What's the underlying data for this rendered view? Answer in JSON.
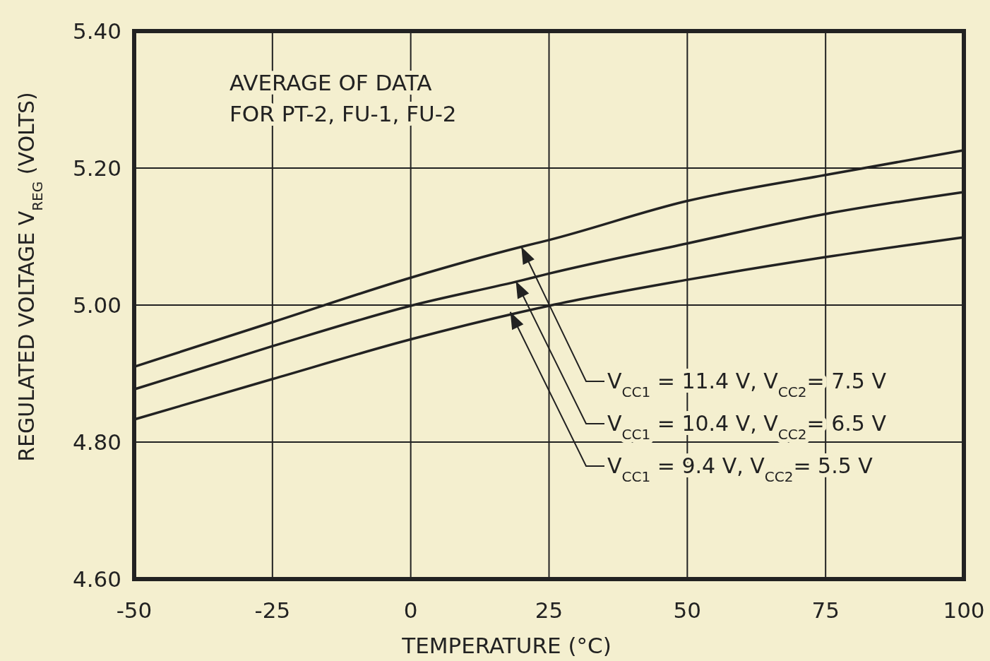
{
  "chart_data": {
    "type": "line",
    "xlabel": "TEMPERATURE (°C)",
    "ylabel": "REGULATED VOLTAGE  V$_{REG}$ (VOLTS)",
    "x": [
      -50,
      -25,
      0,
      20,
      25,
      50,
      75,
      100
    ],
    "series": [
      {
        "color": "#222222",
        "values": [
          4.91,
          4.975,
          5.04,
          5.085,
          5.095,
          5.152,
          5.19,
          5.226
        ]
      },
      {
        "color": "#222222",
        "values": [
          4.877,
          4.94,
          4.999,
          5.036,
          5.046,
          5.09,
          5.133,
          5.165
        ]
      },
      {
        "color": "#222222",
        "values": [
          4.833,
          4.892,
          4.95,
          4.99,
          4.999,
          5.037,
          5.07,
          5.099
        ]
      }
    ],
    "xlim": [
      -50,
      100
    ],
    "ylim": [
      4.6,
      5.4
    ],
    "xticks": [
      -50,
      -25,
      0,
      25,
      50,
      75,
      100
    ],
    "yticks": [
      {
        "value": 4.6,
        "label": "4.60"
      },
      {
        "value": 4.8,
        "label": "4.80"
      },
      {
        "value": 5.0,
        "label": "5.00"
      },
      {
        "value": 5.2,
        "label": "5.20"
      },
      {
        "value": 5.4,
        "label": "5.40"
      }
    ],
    "grid": true,
    "line_style": "solid",
    "marker": "none",
    "annotations": [
      "AVERAGE OF DATA\nFOR PT-2, FU-1, FU-2",
      {
        "text": "V$_{CC1}$ = 11.4 V,  V$_{CC2}$= 7.5 V",
        "x": 20,
        "y": 5.085
      },
      {
        "text": "V$_{CC1}$ = 10.4 V,  V$_{CC2}$= 6.5 V",
        "x": 19,
        "y": 5.035
      },
      {
        "text": "V$_{CC1}$ = 9.4 V,  V$_{CC2}$= 5.5 V",
        "x": 18,
        "y": 4.99
      }
    ]
  }
}
